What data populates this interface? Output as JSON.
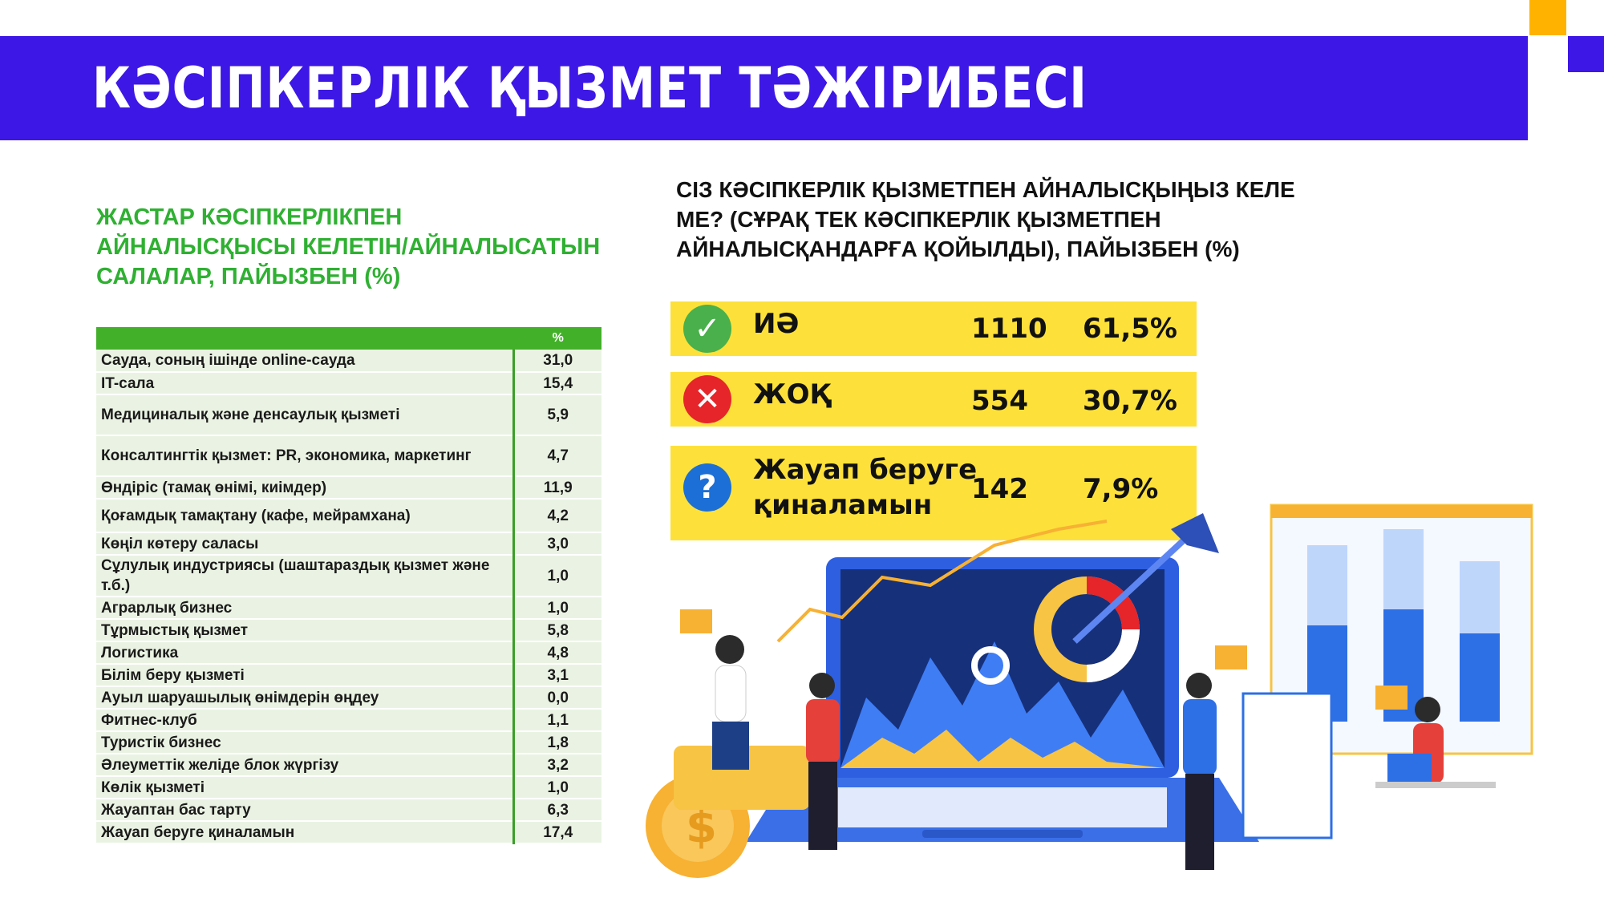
{
  "header": {
    "title": "КӘСІПКЕРЛІК ҚЫЗМЕТ ТӘЖІРИБЕСІ"
  },
  "left_section": {
    "heading_lines": [
      "ЖАСТАР КӘСІПКЕРЛІКПЕН",
      "АЙНАЛЫСҚЫСЫ КЕЛЕТІН/АЙНАЛЫСАТЫН",
      "САЛАЛАР, ПАЙЫЗБЕН (%)"
    ],
    "table": {
      "column_header": "%",
      "rows": [
        {
          "label": "Сауда, соның ішінде online-сауда",
          "value": "31,0"
        },
        {
          "label": "IT-сала",
          "value": "15,4"
        },
        {
          "label": "Медициналық және денсаулық қызметі",
          "value": "5,9"
        },
        {
          "label": "Консалтингтік қызмет: PR, экономика, маркетинг",
          "value": "4,7"
        },
        {
          "label": "Өндіріс (тамақ өнімі, киімдер)",
          "value": "11,9"
        },
        {
          "label": "Қоғамдық тамақтану (кафе, мейрамхана)",
          "value": "4,2"
        },
        {
          "label": "Көңіл көтеру саласы",
          "value": "3,0"
        },
        {
          "label": "Сұлулық индустриясы (шаштараздық қызмет және т.б.)",
          "value": "1,0"
        },
        {
          "label": "Аграрлық бизнес",
          "value": "1,0"
        },
        {
          "label": "Тұрмыстық қызмет",
          "value": "5,8"
        },
        {
          "label": "Логистика",
          "value": "4,8"
        },
        {
          "label": "Білім беру қызметі",
          "value": "3,1"
        },
        {
          "label": "Ауыл шаруашылық өнімдерін өңдеу",
          "value": "0,0"
        },
        {
          "label": "Фитнес-клуб",
          "value": "1,1"
        },
        {
          "label": "Туристік бизнес",
          "value": "1,8"
        },
        {
          "label": "Әлеуметтік желіде блок жүргізу",
          "value": "3,2"
        },
        {
          "label": "Көлік қызметі",
          "value": "1,0"
        },
        {
          "label": "Жауаптан бас тарту",
          "value": "6,3"
        },
        {
          "label": "Жауап беруге қиналамын",
          "value": "17,4"
        }
      ]
    }
  },
  "right_section": {
    "heading_lines": [
      "СІЗ КӘСІПКЕРЛІК ҚЫЗМЕТПЕН АЙНАЛЫСҚЫҢЫЗ КЕЛЕ",
      "МЕ? (СҰРАҚ ТЕК КӘСІПКЕРЛІК ҚЫЗМЕТПЕН",
      "АЙНАЛЫСҚАНДАРҒА ҚОЙЫЛДЫ), ПАЙЫЗБЕН (%)"
    ],
    "answers": [
      {
        "label_lines": [
          "ИӘ"
        ],
        "count": "1110",
        "percent": "61,5%",
        "icon": "check-icon",
        "icon_glyph": "✓",
        "color": "#49b04b"
      },
      {
        "label_lines": [
          "ЖОҚ"
        ],
        "count": "554",
        "percent": "30,7%",
        "icon": "cross-icon",
        "icon_glyph": "✕",
        "color": "#e5252a"
      },
      {
        "label_lines": [
          "Жауап беруге",
          "қиналамын"
        ],
        "count": "142",
        "percent": "7,9%",
        "icon": "question-icon",
        "icon_glyph": "?",
        "color": "#1c6fd6"
      }
    ]
  },
  "colors": {
    "header_band": "#3d17e6",
    "accent_orange": "#ffb300",
    "heading_green": "#2fb032",
    "table_header": "#43b02a",
    "table_row": "#eaf3e3",
    "answer_box": "#fde13a"
  }
}
